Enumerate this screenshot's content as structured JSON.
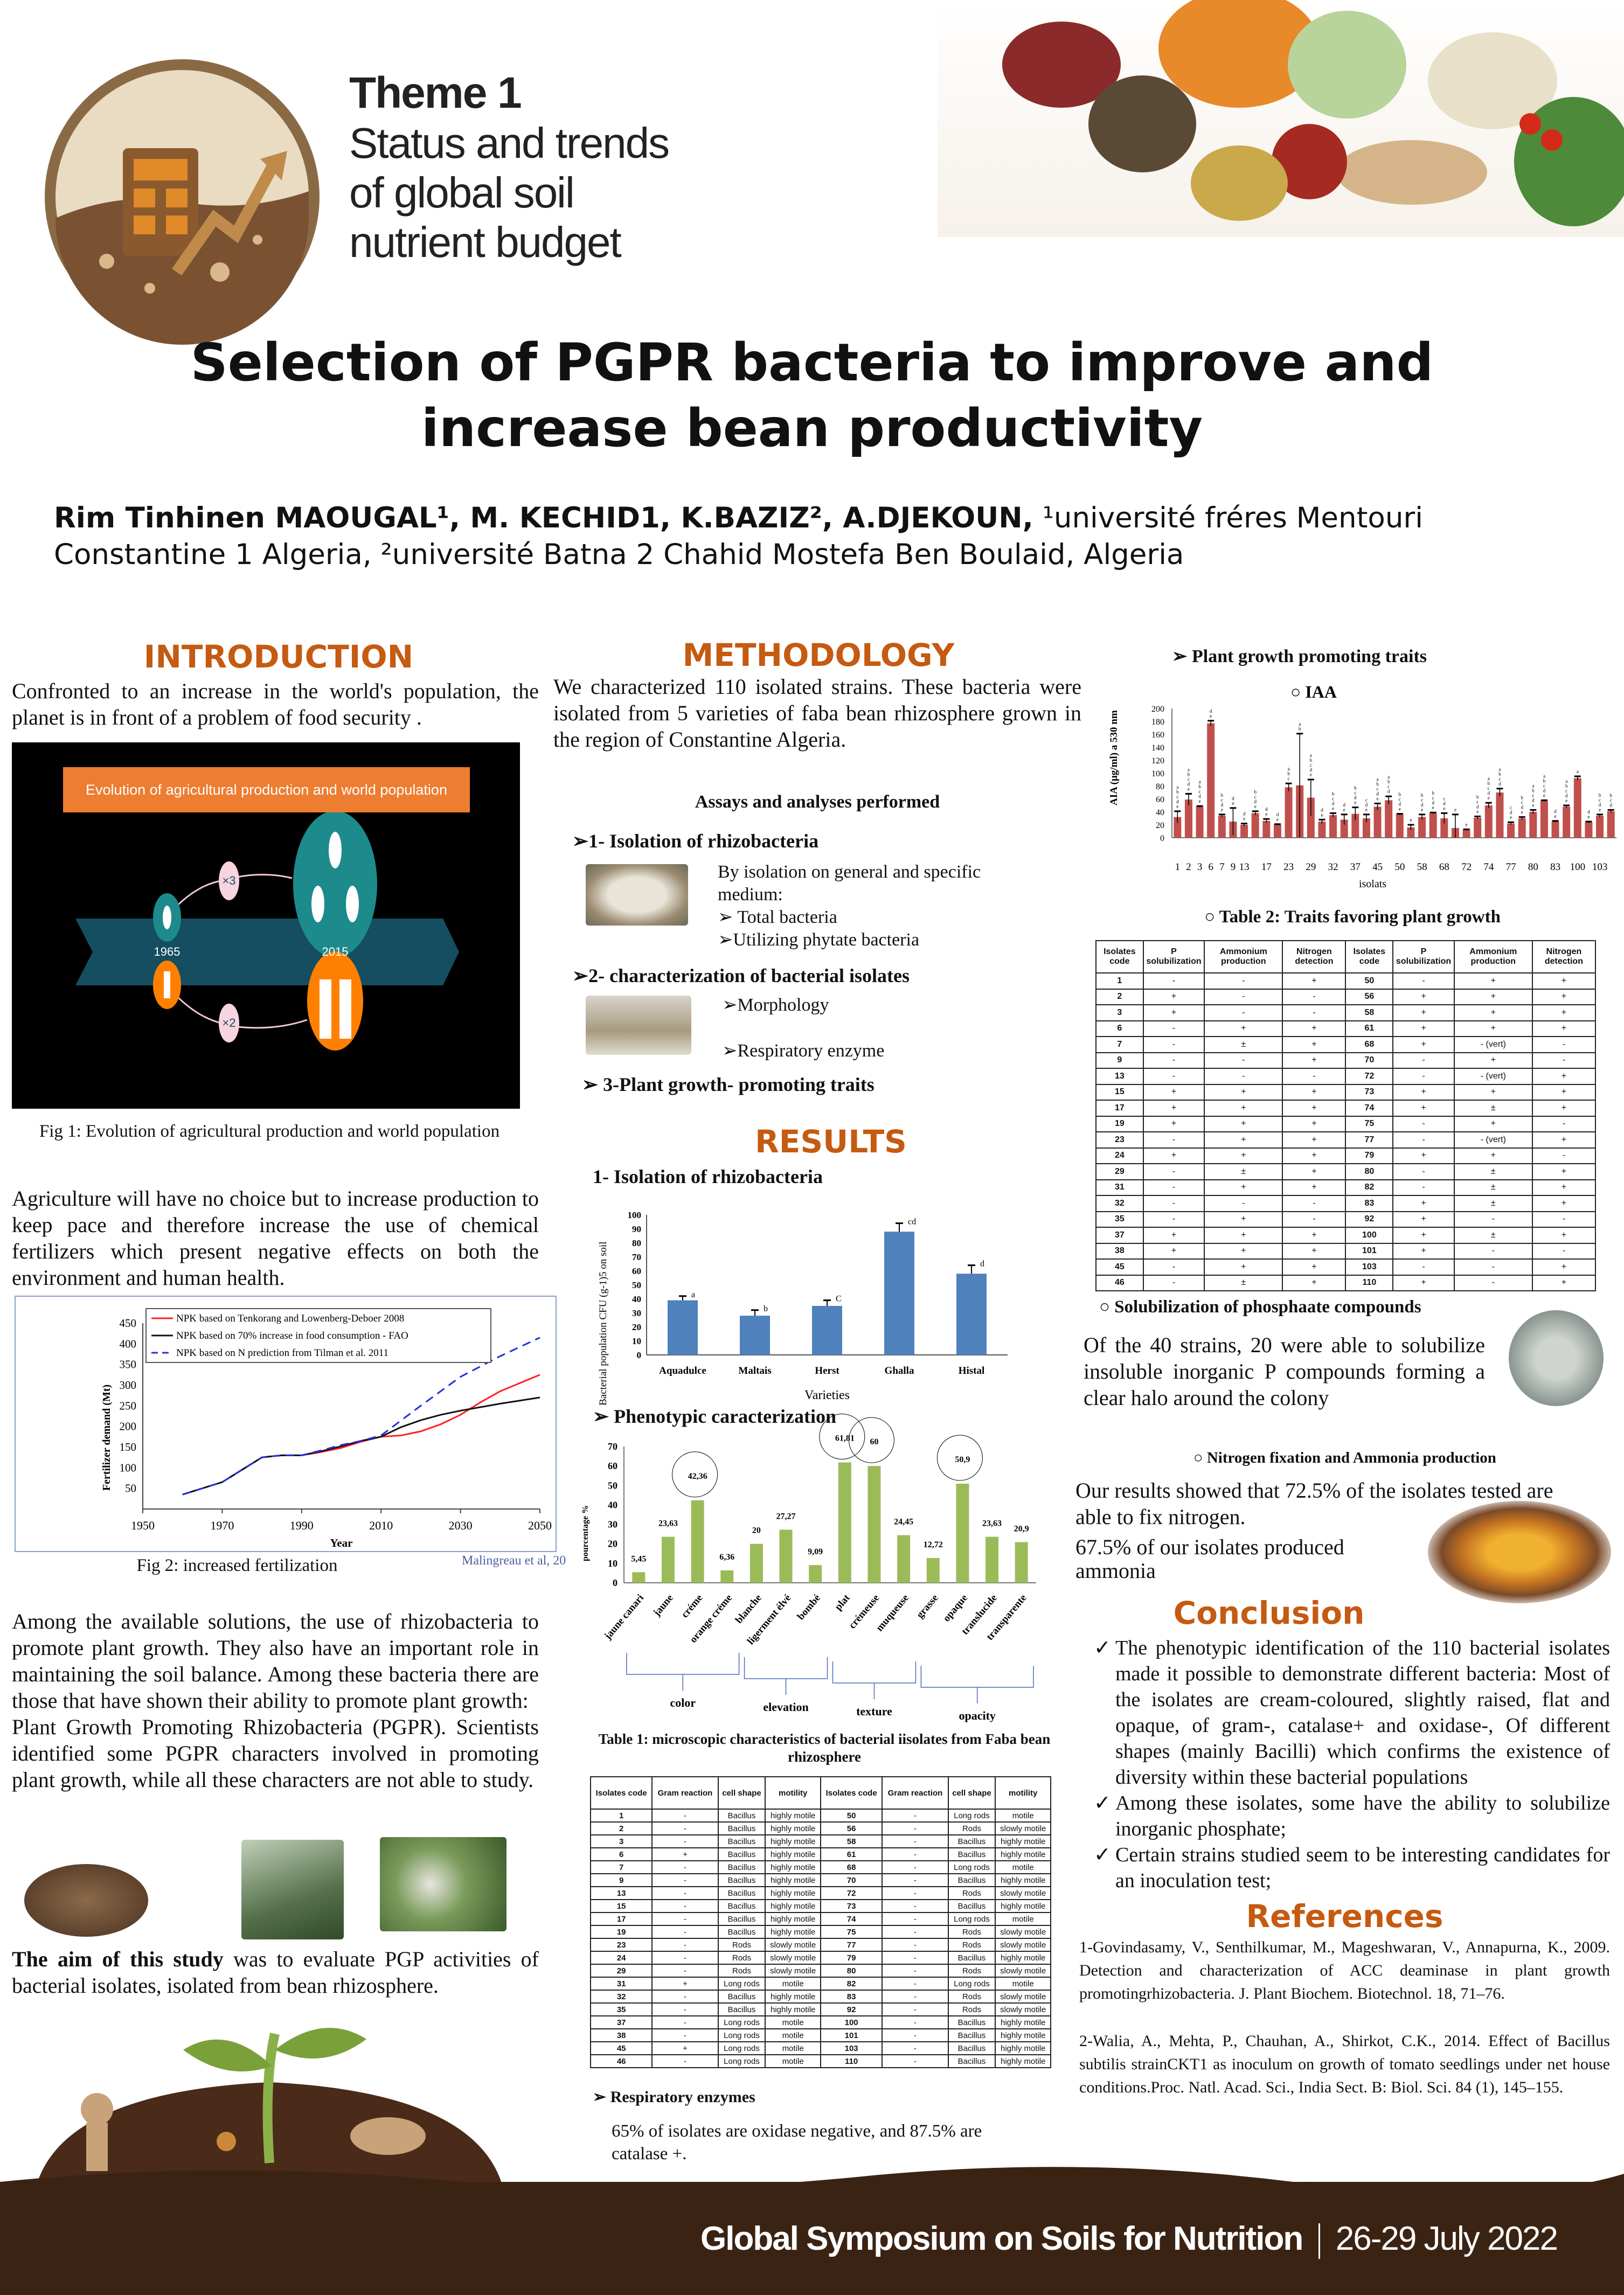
{
  "header": {
    "theme_number": "Theme 1",
    "theme_lines": [
      "Status and trends",
      "of global soil",
      "nutrient budget"
    ],
    "title_line1": "Selection of PGPR bacteria to improve and",
    "title_line2": "increase bean productivity",
    "authors_bold": "Rim Tinhinen MAOUGAL¹, M. KECHID1, K.BAZIZ², A.DJEKOUN,",
    "affiliations_1": " ¹université fréres Mentouri",
    "affiliations_2": "Constantine 1 Algeria, ²université Batna 2 Chahid Mostefa Ben Boulaid, Algeria"
  },
  "introduction": {
    "heading": "INTRODUCTION",
    "para1": "Confronted to an increase in the world's population, the planet is in front of a problem of food security .",
    "fig1": {
      "banner": "Evolution of agricultural production and world population",
      "year_start": "1965",
      "year_end": "2015",
      "production_factor": "×3",
      "population_factor": "×2",
      "caption": "Fig 1: Evolution of agricultural production and world population"
    },
    "para2": "Agriculture will have no choice but to increase production to keep pace and therefore increase the use of chemical fertilizers which present negative effects on both the environment and human health.",
    "fig2_caption": "Fig 2: increased fertilization",
    "fig2_source": "Malingreau et al, 20",
    "para3": "Among the available solutions, the use of rhizobacteria to promote plant growth. They also have an important role in maintaining the soil balance. Among these bacteria there are those that have shown their ability to promote plant growth:",
    "para4": "Plant Growth Promoting Rhizobacteria (PGPR). Scientists identified some PGPR characters involved in promoting plant growth, while all these characters are not able to study.",
    "aim_bold": "The aim of this study",
    "aim_rest": " was to evaluate PGP activities of bacterial isolates, isolated from bean rhizosphere."
  },
  "methodology": {
    "heading": "METHODOLOGY",
    "para": "We characterized 110 isolated strains. These bacteria were isolated from 5 varieties of faba bean rhizosphere grown in the region of Constantine Algeria.",
    "assays_title": "Assays and analyses performed",
    "step1": "1- Isolation of rhizobacteria",
    "step1_text": "By isolation on general and specific medium:",
    "step1_items": [
      "Total bacteria",
      "Utilizing phytate bacteria"
    ],
    "step2": "2- characterization of bacterial isolates",
    "step2_items": [
      "Morphology",
      "Respiratory enzyme"
    ],
    "step3": "3-Plant growth- promoting traits"
  },
  "results": {
    "heading": "RESULTS",
    "sub1": "1-  Isolation of rhizobacteria",
    "sub2": "Phenotypic caracterization",
    "table1_caption": "Table  1: microscopic characteristics of bacterial iisolates from Faba bean rhizosphere",
    "respiratory_title": "Respiratory enzymes",
    "respiratory_text": "65% of isolates are oxidase negative, and 87.5% are catalase +."
  },
  "table1": {
    "headers": [
      "Isolates code",
      "Gram reaction",
      "cell shape",
      "motility",
      "Isolates code",
      "Gram reaction",
      "cell shape",
      "motility"
    ],
    "rows": [
      [
        "1",
        "-",
        "Bacillus",
        "highly motile",
        "50",
        "-",
        "Long rods",
        "motile"
      ],
      [
        "2",
        "-",
        "Bacillus",
        "highly motile",
        "56",
        "-",
        "Rods",
        "slowly motile"
      ],
      [
        "3",
        "-",
        "Bacillus",
        "highly motile",
        "58",
        "-",
        "Bacillus",
        "highly motile"
      ],
      [
        "6",
        "+",
        "Bacillus",
        "highly motile",
        "61",
        "-",
        "Bacillus",
        "highly motile"
      ],
      [
        "7",
        "-",
        "Bacillus",
        "highly motile",
        "68",
        "-",
        "Long rods",
        "motile"
      ],
      [
        "9",
        "-",
        "Bacillus",
        "highly motile",
        "70",
        "-",
        "Bacillus",
        "highly motile"
      ],
      [
        "13",
        "-",
        "Bacillus",
        "highly motile",
        "72",
        "-",
        "Rods",
        "slowly motile"
      ],
      [
        "15",
        "-",
        "Bacillus",
        "highly motile",
        "73",
        "-",
        "Bacillus",
        "highly motile"
      ],
      [
        "17",
        "-",
        "Bacillus",
        "highly motile",
        "74",
        "-",
        "Long rods",
        "motile"
      ],
      [
        "19",
        "-",
        "Bacillus",
        "highly motile",
        "75",
        "-",
        "Rods",
        "slowly motile"
      ],
      [
        "23",
        "-",
        "Rods",
        "slowly motile",
        "77",
        "-",
        "Rods",
        "slowly motile"
      ],
      [
        "24",
        "-",
        "Rods",
        "slowly motile",
        "79",
        "-",
        "Bacillus",
        "highly motile"
      ],
      [
        "29",
        "-",
        "Rods",
        "slowly motile",
        "80",
        "-",
        "Rods",
        "slowly motile"
      ],
      [
        "31",
        "+",
        "Long rods",
        "motile",
        "82",
        "-",
        "Long rods",
        "motile"
      ],
      [
        "32",
        "-",
        "Bacillus",
        "highly motile",
        "83",
        "-",
        "Rods",
        "slowly motile"
      ],
      [
        "35",
        "-",
        "Bacillus",
        "highly motile",
        "92",
        "-",
        "Rods",
        "slowly motile"
      ],
      [
        "37",
        "-",
        "Long rods",
        "motile",
        "100",
        "-",
        "Bacillus",
        "highly motile"
      ],
      [
        "38",
        "-",
        "Long rods",
        "motile",
        "101",
        "-",
        "Bacillus",
        "highly motile"
      ],
      [
        "45",
        "+",
        "Long rods",
        "motile",
        "103",
        "-",
        "Bacillus",
        "highly motile"
      ],
      [
        "46",
        "-",
        "Long rods",
        "motile",
        "110",
        "-",
        "Bacillus",
        "highly motile"
      ]
    ]
  },
  "right": {
    "pgp_title": "Plant growth promoting traits",
    "table2_title": "Table 2: Traits favoring plant growth",
    "phos_title": "Solubilization of phosphaate compounds",
    "phos_text": "Of the 40 strains, 20 were able to solubilize insoluble inorganic P compounds forming a clear halo around the colony",
    "nitro_title": "Nitrogen fixation and Ammonia production",
    "nitro_text1": "Our results showed that 72.5% of the isolates tested are able to fix nitrogen.",
    "nitro_text2": "67.5% of our isolates produced ammonia",
    "conclusion_heading": "Conclusion",
    "conclusions": [
      "The phenotypic identification of the 110 bacterial isolates made it possible to demonstrate different bacteria: Most of the isolates are cream-coloured, slightly raised, flat and opaque, of gram-, catalase+ and oxidase-, Of different shapes (mainly Bacilli) which confirms the existence of diversity within these bacterial populations",
      "Among these isolates, some have the ability to solubilize inorganic phosphate;",
      "Certain strains studied seem to be interesting candidates for an inoculation test;"
    ],
    "references_heading": "References",
    "references": [
      "1-Govindasamy, V., Senthilkumar, M., Mageshwaran, V., Annapurna, K., 2009. Detection and characterization of ACC deaminase in plant growth promotingrhizobacteria. J. Plant Biochem. Biotechnol. 18, 71–76.",
      "2-Walia, A., Mehta, P., Chauhan, A., Shirkot, C.K., 2014. Effect of Bacillus subtilis strainCKT1 as inoculum on growth of tomato seedlings under net house conditions.Proc. Natl. Acad. Sci., India Sect. B: Biol. Sci. 84 (1), 145–155."
    ]
  },
  "table2": {
    "headers": [
      "Isolates code",
      "P solubilization",
      "Ammonium production",
      "Nitrogen detection",
      "Isolates code",
      "P solubilization",
      "Ammonium production",
      "Nitrogen detection"
    ],
    "rows": [
      [
        "1",
        "-",
        "-",
        "+",
        "50",
        "-",
        "+",
        "+"
      ],
      [
        "2",
        "+",
        "-",
        "-",
        "56",
        "+",
        "+",
        "+"
      ],
      [
        "3",
        "+",
        "-",
        "-",
        "58",
        "+",
        "+",
        "+"
      ],
      [
        "6",
        "-",
        "+",
        "+",
        "61",
        "+",
        "+",
        "+"
      ],
      [
        "7",
        "-",
        "±",
        "+",
        "68",
        "+",
        "- (vert)",
        "-"
      ],
      [
        "9",
        "-",
        "-",
        "+",
        "70",
        "-",
        "+",
        "-"
      ],
      [
        "13",
        "-",
        "-",
        "-",
        "72",
        "-",
        "- (vert)",
        "+"
      ],
      [
        "15",
        "+",
        "+",
        "+",
        "73",
        "+",
        "+",
        "+"
      ],
      [
        "17",
        "+",
        "+",
        "+",
        "74",
        "+",
        "±",
        "+"
      ],
      [
        "19",
        "+",
        "+",
        "+",
        "75",
        "-",
        "+",
        "-"
      ],
      [
        "23",
        "-",
        "+",
        "+",
        "77",
        "-",
        "- (vert)",
        "+"
      ],
      [
        "24",
        "+",
        "+",
        "+",
        "79",
        "+",
        "+",
        "-"
      ],
      [
        "29",
        "-",
        "±",
        "+",
        "80",
        "-",
        "±",
        "+"
      ],
      [
        "31",
        "-",
        "+",
        "+",
        "82",
        "-",
        "±",
        "+"
      ],
      [
        "32",
        "-",
        "-",
        "-",
        "83",
        "+",
        "±",
        "+"
      ],
      [
        "35",
        "-",
        "+",
        "-",
        "92",
        "+",
        "-",
        "-"
      ],
      [
        "37",
        "+",
        "+",
        "+",
        "100",
        "+",
        "±",
        "+"
      ],
      [
        "38",
        "+",
        "+",
        "+",
        "101",
        "+",
        "-",
        "-"
      ],
      [
        "45",
        "-",
        "+",
        "+",
        "103",
        "-",
        "-",
        "+"
      ],
      [
        "46",
        "-",
        "±",
        "+",
        "110",
        "+",
        "-",
        "+"
      ]
    ]
  },
  "footer": {
    "event": "Global Symposium on Soils for Nutrition",
    "dates": "26-29 July 2022"
  },
  "colors": {
    "accent_orange": "#c55a11",
    "bar_blue": "#4f81bd",
    "bar_green": "#9bbb59",
    "bar_red": "#c0504d",
    "footer_brown": "#3b2314"
  },
  "chart_data": [
    {
      "id": "rhizo",
      "type": "bar",
      "title": "",
      "xlabel": "Varieties",
      "ylabel": "Bacterial population CFU (g-1)5 on soil",
      "categories": [
        "Aquadulce",
        "Maltais",
        "Herst",
        "Ghalla",
        "Histal"
      ],
      "values": [
        39,
        28,
        35,
        88,
        58
      ],
      "errors": [
        3,
        4,
        4,
        6,
        6
      ],
      "letters": [
        "a",
        "b",
        "C",
        "cd",
        "d"
      ],
      "ylim": [
        0,
        100
      ],
      "yticks": [
        0,
        10,
        20,
        30,
        40,
        50,
        60,
        70,
        80,
        90,
        100
      ]
    },
    {
      "id": "pheno",
      "type": "bar",
      "ylabel": "pourcentage %",
      "categories": [
        "jaune canari",
        "jaune",
        "créme",
        "orange créme",
        "blanche",
        "ligerment élvé",
        "bombé",
        "plat",
        "crémeuse",
        "muqueuse",
        "grasse",
        "opaque",
        "translucide",
        "transparente"
      ],
      "values": [
        5.45,
        23.63,
        42.36,
        6.36,
        20,
        27.27,
        9.09,
        61.81,
        60,
        24.45,
        12.72,
        50.9,
        23.63,
        20.9
      ],
      "value_labels": [
        "5,45",
        "23,63",
        "42,36",
        "6,36",
        "20",
        "27,27",
        "9,09",
        "61,81",
        "60",
        "24,45",
        "12,72",
        "50,9",
        "23,63",
        "20,9"
      ],
      "circled": [
        2,
        7,
        8,
        11
      ],
      "groups": [
        {
          "label": "color",
          "from": 0,
          "to": 3
        },
        {
          "label": "elevation",
          "from": 4,
          "to": 6
        },
        {
          "label": "texture",
          "from": 7,
          "to": 9
        },
        {
          "label": "opacity",
          "from": 10,
          "to": 13
        }
      ],
      "ylim": [
        0,
        70
      ],
      "yticks": [
        0,
        10,
        20,
        30,
        40,
        50,
        60,
        70
      ]
    },
    {
      "id": "iaa",
      "type": "bar",
      "title": "IAA",
      "xlabel": "isolats",
      "ylabel": "AIA (µg/ml) a   530 nm",
      "isolates": [
        "1",
        "2",
        "3",
        "6",
        "7",
        "9",
        "13",
        "15",
        "17",
        "19",
        "23",
        "24",
        "29",
        "31",
        "32",
        "35",
        "37",
        "38",
        "45",
        "46",
        "50",
        "56",
        "58",
        "61",
        "68",
        "70",
        "72",
        "73",
        "74",
        "75",
        "77",
        "79",
        "80",
        "82",
        "83",
        "92",
        "100",
        "101",
        "103",
        "110"
      ],
      "values": [
        32,
        59,
        48,
        177,
        34,
        25,
        20,
        38,
        26,
        20,
        78,
        81,
        62,
        25,
        35,
        28,
        37,
        30,
        48,
        58,
        36,
        16,
        32,
        38,
        30,
        15,
        12,
        31,
        50,
        70,
        22,
        30,
        40,
        57,
        25,
        48,
        92,
        24,
        34,
        41
      ],
      "errors": [
        9,
        9,
        1,
        4,
        2,
        21,
        2,
        3,
        3,
        1,
        6,
        80,
        28,
        3,
        3,
        8,
        10,
        6,
        5,
        6,
        1,
        4,
        4,
        1,
        8,
        21,
        1,
        2,
        4,
        6,
        2,
        2,
        3,
        1,
        1,
        2,
        3,
        1,
        2,
        2
      ],
      "letters": [
        "abcde",
        "abcde",
        "abcde",
        "de",
        "bcde",
        "de",
        "de",
        "bcde",
        "de",
        "de",
        "abc",
        "ab",
        "abcde",
        "de",
        "bcde",
        "de",
        "bcde",
        "cde",
        "abcde",
        "abcd",
        "bcde",
        "e",
        "bcde",
        "bcde",
        "cde",
        "e",
        "e",
        "bcde",
        "abcde",
        "abcd",
        "cde",
        "bcde",
        "abcde",
        "abcde",
        "de",
        "abcde",
        "a",
        "de",
        "bcde",
        "bcd"
      ],
      "tick_labels": [
        "1",
        "2",
        "3",
        "6",
        "7",
        "9",
        "13",
        "17",
        "23",
        "29",
        "32",
        "37",
        "45",
        "50",
        "58",
        "68",
        "72",
        "74",
        "77",
        "80",
        "83",
        "100",
        "103"
      ],
      "ylim": [
        0,
        200
      ],
      "yticks": [
        0,
        20,
        40,
        60,
        80,
        100,
        120,
        140,
        160,
        180,
        200
      ]
    },
    {
      "id": "fert",
      "type": "line",
      "xlabel": "Year",
      "ylabel": "Fertilizer demand  (Mt)",
      "xlim": [
        1950,
        2050
      ],
      "ylim": [
        0,
        450
      ],
      "xticks": [
        1950,
        1970,
        1990,
        2010,
        2030,
        2050
      ],
      "yticks": [
        50,
        100,
        150,
        200,
        250,
        300,
        350,
        400,
        450
      ],
      "legend_position": "top",
      "series": [
        {
          "name": "NPK based on Tenkorang and Lowenberg-Deboer 2008",
          "color": "#ff2020",
          "dash": false,
          "x": [
            1960,
            1965,
            1970,
            1975,
            1980,
            1985,
            1990,
            1995,
            2000,
            2005,
            2010,
            2015,
            2020,
            2025,
            2030,
            2035,
            2040,
            2045,
            2050
          ],
          "y": [
            35,
            50,
            65,
            95,
            125,
            130,
            130,
            138,
            148,
            163,
            175,
            178,
            188,
            205,
            228,
            258,
            285,
            305,
            325
          ]
        },
        {
          "name": "NPK based on 70% increase in food consumption - FAO",
          "color": "#111111",
          "dash": false,
          "x": [
            1960,
            1965,
            1970,
            1975,
            1980,
            1985,
            1990,
            1995,
            2000,
            2005,
            2010,
            2015,
            2020,
            2025,
            2030,
            2040,
            2050
          ],
          "y": [
            35,
            50,
            65,
            95,
            125,
            130,
            130,
            140,
            152,
            165,
            175,
            198,
            215,
            228,
            238,
            255,
            270
          ]
        },
        {
          "name": "NPK based on N prediction from Tilman et al. 2011",
          "color": "#2030e0",
          "dash": true,
          "x": [
            1960,
            1965,
            1970,
            1975,
            1980,
            1985,
            1990,
            1995,
            2000,
            2005,
            2010,
            2020,
            2030,
            2040,
            2050
          ],
          "y": [
            35,
            50,
            65,
            95,
            125,
            130,
            130,
            142,
            155,
            165,
            178,
            250,
            320,
            370,
            415
          ]
        }
      ]
    }
  ]
}
